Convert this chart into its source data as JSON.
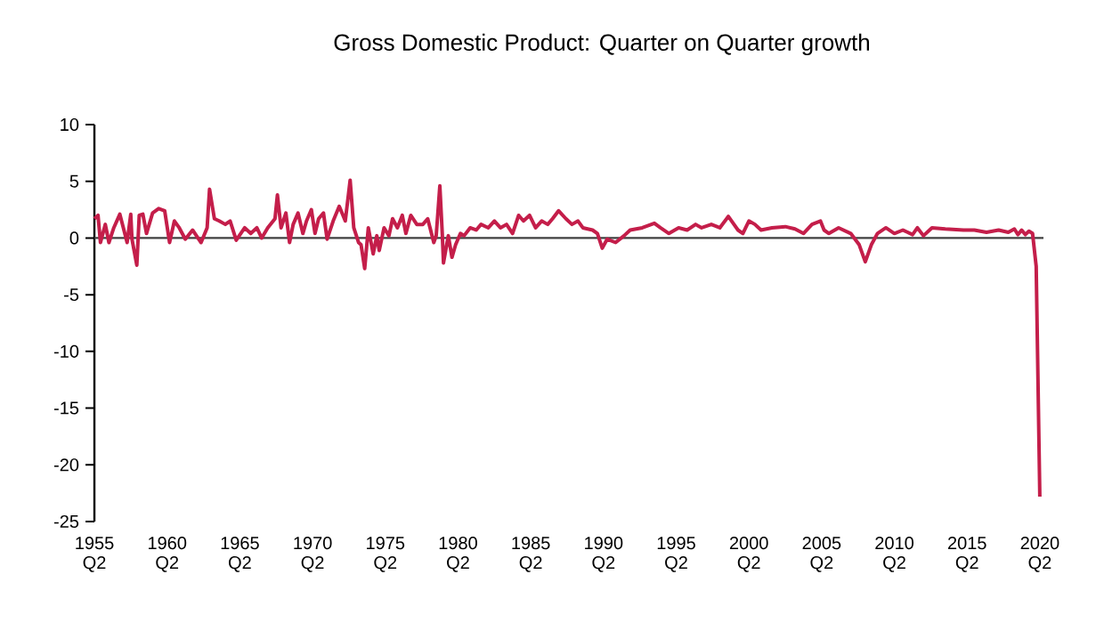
{
  "chart_data": {
    "type": "line",
    "title": "Gross Domestic Product: Quarter on Quarter growth",
    "color": "#c41e4a",
    "line_style": "solid",
    "marker": "none",
    "grid": false,
    "xlim": [
      "1955-04",
      "2020-07"
    ],
    "ylim": [
      -25,
      10
    ],
    "yticks": [
      -25,
      -20,
      -15,
      -10,
      -5,
      0,
      5,
      10
    ],
    "xticks": [
      {
        "value": "1955-04",
        "label": "1955 Q2"
      },
      {
        "value": "1960-04",
        "label": "1960 Q2"
      },
      {
        "value": "1965-04",
        "label": "1965 Q2"
      },
      {
        "value": "1970-04",
        "label": "1970 Q2"
      },
      {
        "value": "1975-04",
        "label": "1975 Q2"
      },
      {
        "value": "1980-04",
        "label": "1980 Q2"
      },
      {
        "value": "1985-04",
        "label": "1985 Q2"
      },
      {
        "value": "1990-04",
        "label": "1990 Q2"
      },
      {
        "value": "1995-04",
        "label": "1995 Q2"
      },
      {
        "value": "2000-04",
        "label": "2000 Q2"
      },
      {
        "value": "2005-04",
        "label": "2005 Q2"
      },
      {
        "value": "2010-04",
        "label": "2010 Q2"
      },
      {
        "value": "2015-04",
        "label": "2015 Q2"
      },
      {
        "value": "2020-04",
        "label": "2020 Q2"
      }
    ],
    "ref_lines": [
      {
        "axis": "y",
        "value": 0,
        "color": "#404040"
      }
    ],
    "x": [
      "1955-04",
      "1955-07",
      "1955-09",
      "1956-01",
      "1956-04",
      "1956-08",
      "1957-01",
      "1957-07",
      "1957-10",
      "1957-11",
      "1958-03",
      "1958-05",
      "1958-08",
      "1958-11",
      "1959-04",
      "1959-09",
      "1960-02",
      "1960-06",
      "1960-10",
      "1961-02",
      "1961-07",
      "1962-01",
      "1962-08",
      "1963-01",
      "1963-03",
      "1963-07",
      "1963-11",
      "1964-04",
      "1964-08",
      "1965-01",
      "1965-08",
      "1966-01",
      "1966-06",
      "1966-10",
      "1967-03",
      "1967-09",
      "1967-11",
      "1968-02",
      "1968-06",
      "1968-09",
      "1968-12",
      "1969-04",
      "1969-08",
      "1969-11",
      "1970-03",
      "1970-06",
      "1970-09",
      "1971-01",
      "1971-04",
      "1971-09",
      "1972-02",
      "1972-07",
      "1972-11",
      "1973-02",
      "1973-06",
      "1973-08",
      "1973-11",
      "1974-02",
      "1974-06",
      "1974-09",
      "1974-11",
      "1975-03",
      "1975-07",
      "1975-10",
      "1976-02",
      "1976-06",
      "1976-09",
      "1977-01",
      "1977-06",
      "1977-11",
      "1978-03",
      "1978-08",
      "1978-10",
      "1979-01",
      "1979-03",
      "1979-04",
      "1979-08",
      "1979-11",
      "1980-02",
      "1980-06",
      "1980-09",
      "1981-02",
      "1981-07",
      "1981-11",
      "1982-05",
      "1982-10",
      "1983-03",
      "1983-08",
      "1984-01",
      "1984-06",
      "1984-10",
      "1985-03",
      "1985-08",
      "1986-01",
      "1986-06",
      "1986-10",
      "1987-03",
      "1987-09",
      "1988-02",
      "1988-07",
      "1988-11",
      "1989-07",
      "1989-11",
      "1990-03",
      "1990-07",
      "1991-02",
      "1991-09",
      "1992-02",
      "1992-12",
      "1993-10",
      "1994-03",
      "1994-10",
      "1995-06",
      "1996-01",
      "1996-08",
      "1997-01",
      "1997-09",
      "1998-04",
      "1998-11",
      "1999-07",
      "1999-11",
      "2000-04",
      "2000-09",
      "2001-02",
      "2001-11",
      "2002-10",
      "2003-06",
      "2004-01",
      "2004-08",
      "2005-03",
      "2005-06",
      "2005-10",
      "2006-06",
      "2007-04",
      "2007-11",
      "2008-04",
      "2008-09",
      "2009-02",
      "2009-09",
      "2010-04",
      "2010-11",
      "2011-07",
      "2011-11",
      "2012-04",
      "2012-11",
      "2013-10",
      "2015-01",
      "2015-10",
      "2016-08",
      "2017-06",
      "2018-02",
      "2018-07",
      "2018-10",
      "2019-01",
      "2019-04",
      "2019-07",
      "2019-10",
      "2020-01",
      "2020-04"
    ],
    "values": [
      1.7,
      2.0,
      -0.4,
      1.2,
      -0.4,
      0.9,
      2.1,
      -0.4,
      2.1,
      -0.1,
      -2.4,
      2.0,
      2.1,
      0.4,
      2.2,
      2.6,
      2.4,
      -0.4,
      1.5,
      0.9,
      -0.1,
      0.7,
      -0.4,
      0.9,
      4.3,
      1.7,
      1.5,
      1.2,
      1.5,
      -0.2,
      0.9,
      0.4,
      0.9,
      0.0,
      0.9,
      1.7,
      3.8,
      0.9,
      2.2,
      -0.4,
      1.2,
      2.2,
      0.4,
      1.5,
      2.5,
      0.4,
      1.7,
      2.2,
      -0.1,
      1.5,
      2.8,
      1.5,
      5.1,
      0.9,
      -0.4,
      -0.6,
      -2.7,
      0.9,
      -1.4,
      0.2,
      -1.1,
      0.9,
      0.2,
      1.7,
      0.9,
      2.0,
      0.4,
      2.0,
      1.2,
      1.2,
      1.7,
      -0.4,
      0.2,
      4.6,
      0.4,
      -2.2,
      0.2,
      -1.7,
      -0.6,
      0.4,
      0.2,
      0.9,
      0.7,
      1.2,
      0.9,
      1.5,
      0.9,
      1.2,
      0.4,
      2.0,
      1.5,
      2.0,
      0.9,
      1.5,
      1.2,
      1.7,
      2.4,
      1.7,
      1.2,
      1.5,
      0.9,
      0.7,
      0.4,
      -0.9,
      -0.1,
      -0.4,
      0.2,
      0.7,
      0.9,
      1.3,
      0.9,
      0.4,
      0.9,
      0.7,
      1.2,
      0.9,
      1.2,
      0.9,
      1.9,
      0.7,
      0.4,
      1.5,
      1.2,
      0.7,
      0.9,
      1.0,
      0.8,
      0.4,
      1.2,
      1.5,
      0.7,
      0.4,
      0.9,
      0.4,
      -0.6,
      -2.1,
      -0.6,
      0.4,
      0.9,
      0.4,
      0.7,
      0.3,
      0.9,
      0.2,
      0.9,
      0.8,
      0.7,
      0.7,
      0.5,
      0.7,
      0.5,
      0.8,
      0.3,
      0.7,
      0.3,
      0.6,
      0.4,
      -2.5,
      -22.8
    ]
  }
}
